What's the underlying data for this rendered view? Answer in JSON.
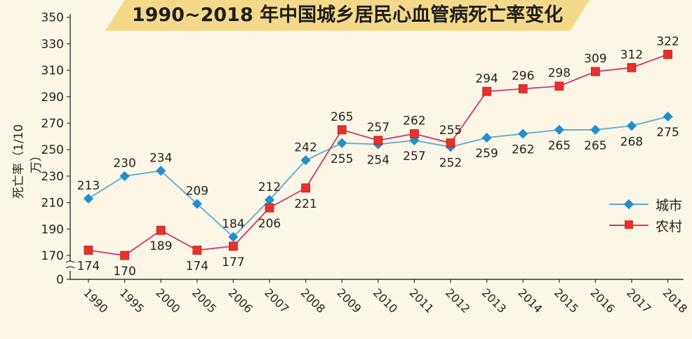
{
  "chart_data": {
    "type": "line",
    "title": "1990~2018 年中国城乡居民心血管病死亡率变化",
    "ylabel": "死亡率（1/10 万）",
    "xlabel": "",
    "categories": [
      "1990",
      "1995",
      "2000",
      "2005",
      "2006",
      "2007",
      "2008",
      "2009",
      "2010",
      "2011",
      "2012",
      "2013",
      "2014",
      "2015",
      "2016",
      "2017",
      "2018"
    ],
    "y_ticks": [
      0,
      170,
      190,
      210,
      230,
      250,
      270,
      290,
      310,
      330,
      350
    ],
    "ylim": [
      160,
      350
    ],
    "y_axis_break": true,
    "grid": false,
    "legend_position": "right",
    "series": [
      {
        "name": "城市",
        "color": "#1f8fd0",
        "line_color": "#5aa9d6",
        "marker": "diamond",
        "values": [
          213,
          230,
          234,
          209,
          184,
          212,
          242,
          255,
          254,
          257,
          252,
          259,
          262,
          265,
          265,
          268,
          275
        ]
      },
      {
        "name": "农村",
        "color": "#e8302c",
        "line_color": "#d1356c",
        "marker": "square",
        "values": [
          174,
          170,
          189,
          174,
          177,
          206,
          221,
          265,
          257,
          262,
          255,
          294,
          296,
          298,
          309,
          312,
          322
        ]
      }
    ]
  }
}
